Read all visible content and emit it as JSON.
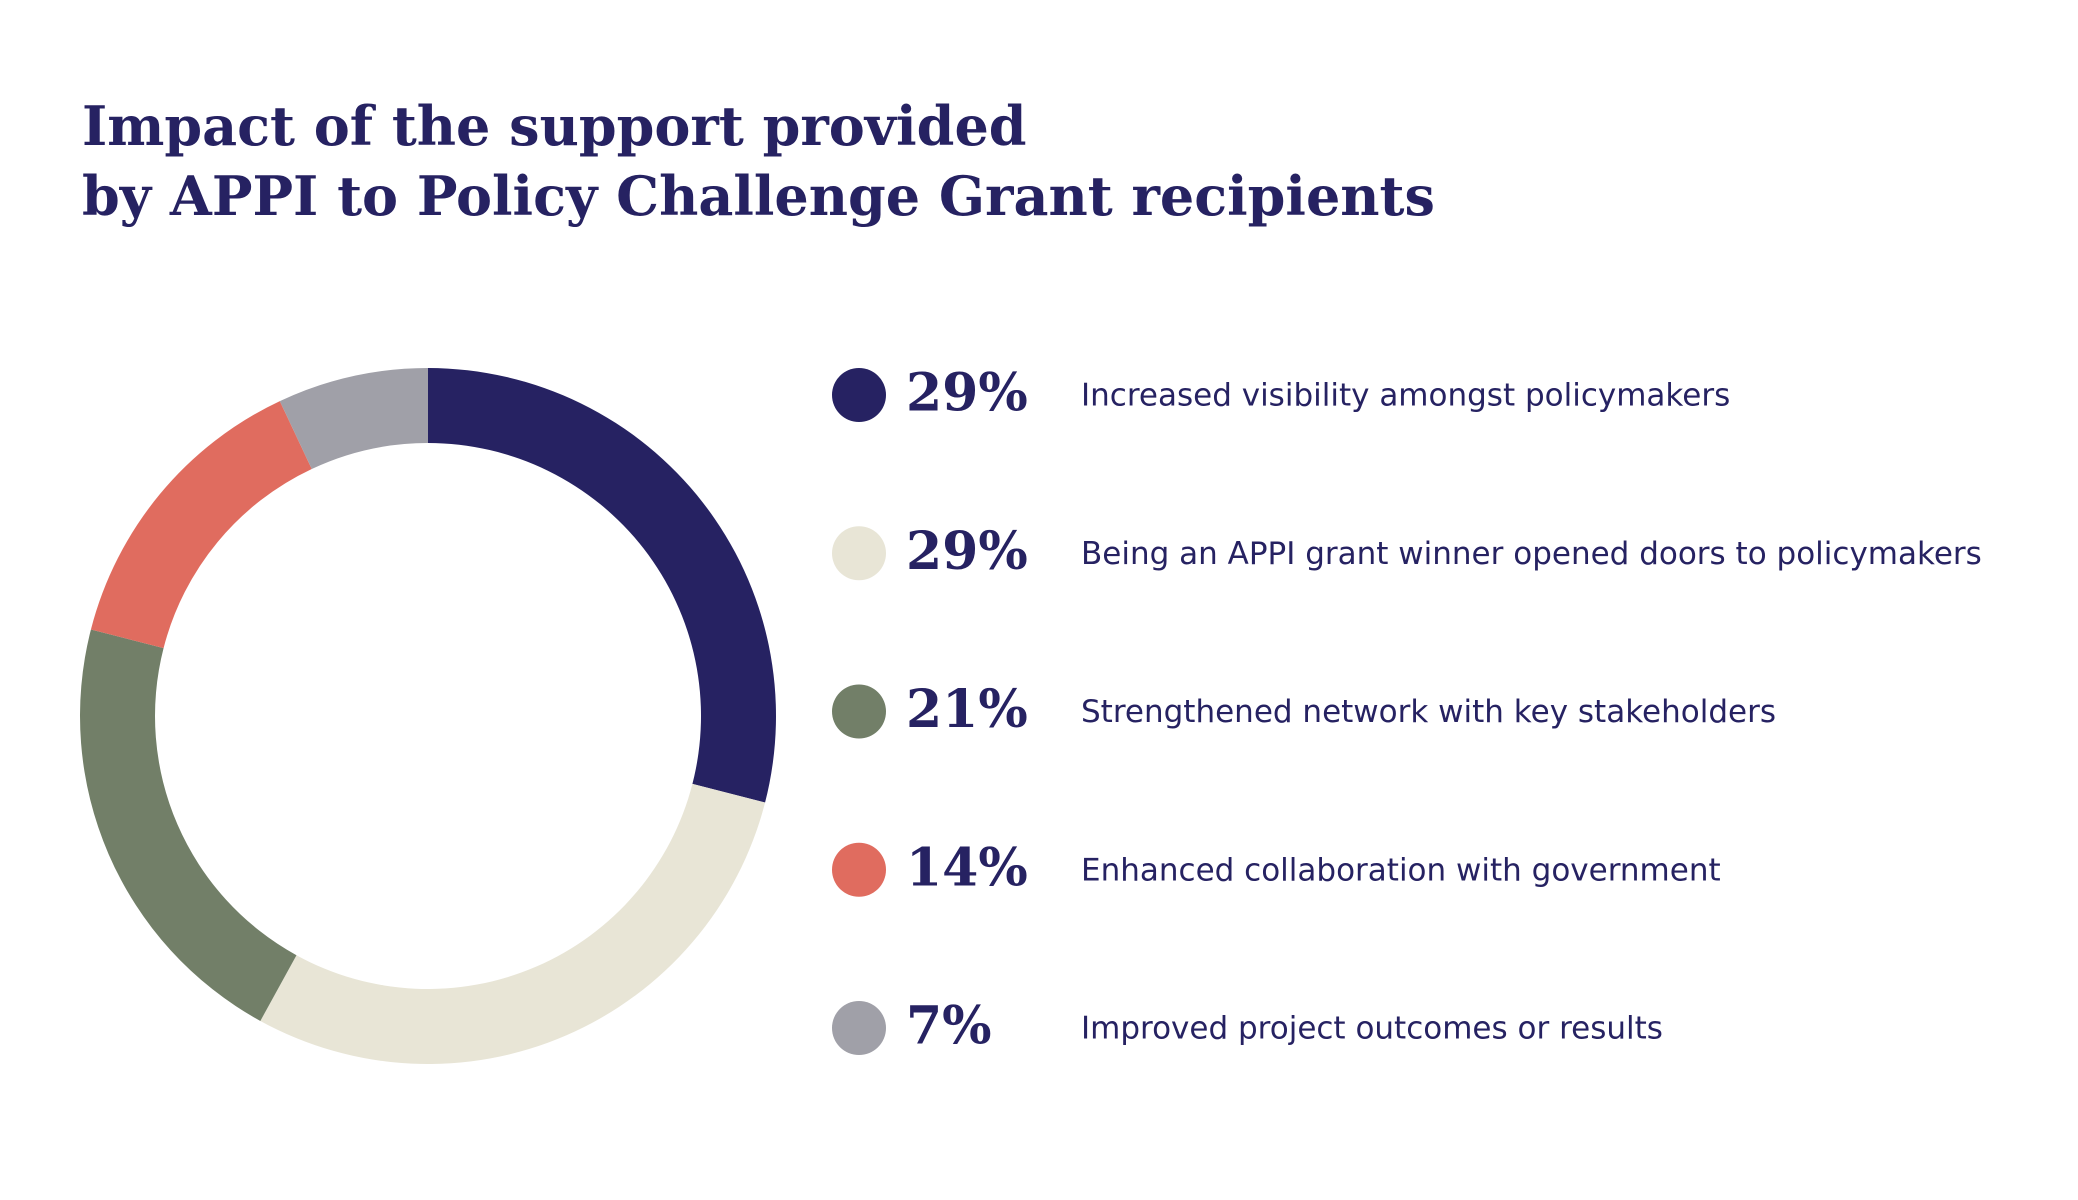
{
  "chart_data": {
    "type": "donut",
    "title": "Impact of the support provided by APPI to Policy Challenge Grant recipients",
    "categories": [
      "Increased visibility amongst policymakers",
      "Being an APPI grant winner opened doors to policymakers",
      "Strengthened network with key stakeholders",
      "Enhanced collaboration with government",
      "Improved project outcomes or results"
    ],
    "values": [
      29,
      29,
      21,
      14,
      7
    ],
    "value_labels": [
      "29%",
      "29%",
      "21%",
      "14%",
      "7%"
    ],
    "colors": [
      "#262262",
      "#e8e5d6",
      "#727f68",
      "#e06c5f",
      "#a0a0a8"
    ]
  }
}
